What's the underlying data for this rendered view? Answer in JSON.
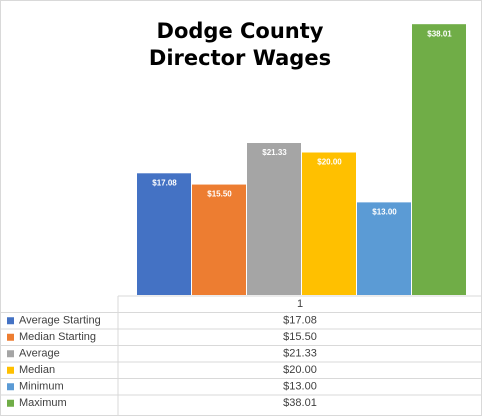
{
  "chart_data": {
    "type": "bar",
    "title": "Dodge County Director Wages",
    "categories": [
      "1"
    ],
    "ylim": [
      0,
      40
    ],
    "series": [
      {
        "name": "Average Starting",
        "color": "#4472c4",
        "values": [
          17.08
        ],
        "value_labels": [
          "$17.08"
        ]
      },
      {
        "name": "Median Starting",
        "color": "#ed7d31",
        "values": [
          15.5
        ],
        "value_labels": [
          "$15.50"
        ]
      },
      {
        "name": "Average",
        "color": "#a5a5a5",
        "values": [
          21.33
        ],
        "value_labels": [
          "$21.33"
        ]
      },
      {
        "name": "Median",
        "color": "#ffc000",
        "values": [
          20.0
        ],
        "value_labels": [
          "$20.00"
        ]
      },
      {
        "name": "Minimum",
        "color": "#5b9bd5",
        "values": [
          13.0
        ],
        "value_labels": [
          "$13.00"
        ]
      },
      {
        "name": "Maximum",
        "color": "#70ad47",
        "values": [
          38.01
        ],
        "value_labels": [
          "$38.01"
        ]
      }
    ]
  }
}
